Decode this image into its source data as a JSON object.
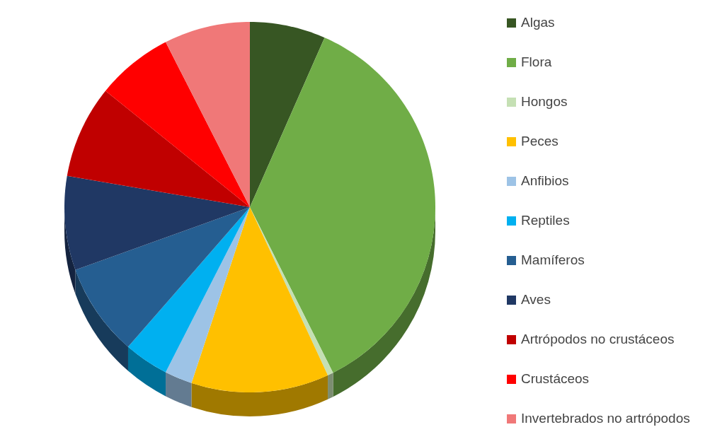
{
  "chart_data": {
    "type": "pie",
    "categories": [
      "Algas",
      "Flora",
      "Hongos",
      "Peces",
      "Anfibios",
      "Reptiles",
      "Mamíferos",
      "Aves",
      "Artrópodos no crustáceos",
      "Crustáceos",
      "Invertebrados no artrópodos"
    ],
    "values": [
      6.6,
      36.0,
      0.5,
      12.0,
      2.4,
      3.9,
      8.1,
      8.2,
      8.1,
      6.7,
      7.5
    ],
    "colors": [
      "#375623",
      "#70ad47",
      "#c5e0b4",
      "#ffc000",
      "#9dc3e6",
      "#00b0f0",
      "#255e91",
      "#203864",
      "#c00000",
      "#ff0000",
      "#f07878"
    ],
    "legend": "right"
  }
}
